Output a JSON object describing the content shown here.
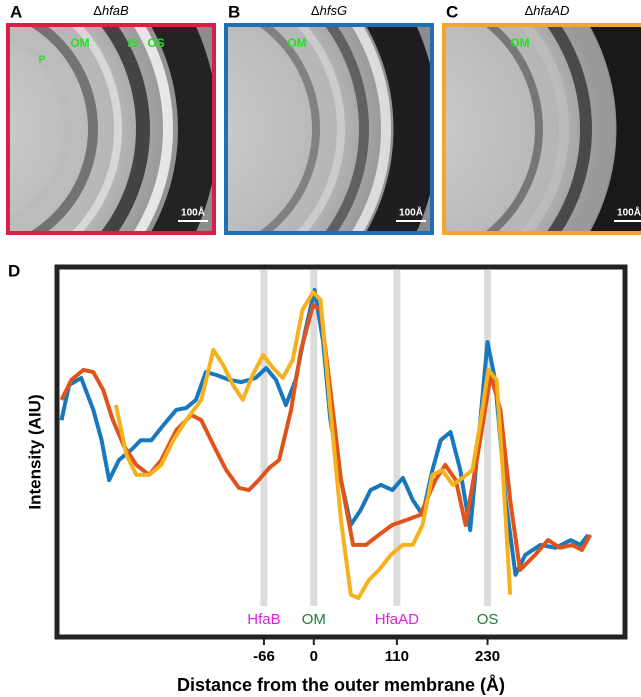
{
  "panels": [
    {
      "letter": "A",
      "prefix": "Δ",
      "gene": "hfaB",
      "color": "#d81f4a",
      "labels": [
        "P",
        "OM",
        "IS",
        "OS"
      ],
      "scale_bar": "100Å"
    },
    {
      "letter": "B",
      "prefix": "Δ",
      "gene": "hfsG",
      "color": "#1f6fb5",
      "labels": [
        "OM"
      ],
      "scale_bar": "100Å"
    },
    {
      "letter": "C",
      "prefix": "Δ",
      "gene": "hfaAD",
      "color": "#f5a623",
      "labels": [
        "OM"
      ],
      "scale_bar": "100Å"
    }
  ],
  "chart_data": {
    "type": "line",
    "panel_label": "D",
    "x_label": "Distance from the outer membrane (Å)",
    "y_label": "Intensity (AIU)",
    "xlim": [
      -340,
      412
    ],
    "ylim": [
      0,
      100
    ],
    "xticks": [
      -66,
      0,
      110,
      230
    ],
    "annotations": [
      {
        "x": -66,
        "label": "HfaB",
        "color": "#e020e0"
      },
      {
        "x": 0,
        "label": "OM",
        "color": "#1e7a3a"
      },
      {
        "x": 110,
        "label": "HfaAD",
        "color": "#e020e0"
      },
      {
        "x": 230,
        "label": "OS",
        "color": "#1e7a3a"
      }
    ],
    "series": [
      {
        "color": "#1878be",
        "x": [
          -334,
          -324,
          -308,
          -292,
          -281,
          -271,
          -258,
          -242,
          -229,
          -215,
          -199,
          -182,
          -169,
          -156,
          -143,
          -129,
          -112,
          -96,
          -77,
          -63,
          -50,
          -37,
          -24,
          -11,
          1,
          12,
          22,
          36,
          49,
          62,
          75,
          89,
          104,
          118,
          131,
          144,
          157,
          168,
          181,
          194,
          207,
          218,
          230,
          240,
          254,
          267,
          280,
          300,
          320,
          340,
          353,
          363
        ],
        "values": [
          58.6,
          68.1,
          70.0,
          61.4,
          53.2,
          42.4,
          47.8,
          50.5,
          53.2,
          53.2,
          57.3,
          61.4,
          61.9,
          64.1,
          71.6,
          70.8,
          69.5,
          68.9,
          70.0,
          72.7,
          69.5,
          62.7,
          69.5,
          83.0,
          93.8,
          80.3,
          58.6,
          42.4,
          30.3,
          34.3,
          39.7,
          41.1,
          39.7,
          43.0,
          37.0,
          33.0,
          45.1,
          53.2,
          55.4,
          45.1,
          28.9,
          53.2,
          79.7,
          69.5,
          37.0,
          16.8,
          22.2,
          24.9,
          24.1,
          26.2,
          24.9,
          27.6
        ]
      },
      {
        "color": "#e0541c",
        "x": [
          -334,
          -321,
          -305,
          -292,
          -279,
          -266,
          -252,
          -235,
          -218,
          -202,
          -182,
          -162,
          -149,
          -133,
          -116,
          -99,
          -86,
          -73,
          -59,
          -46,
          -30,
          -17,
          -1,
          9,
          22,
          36,
          52,
          69,
          86,
          104,
          122,
          141,
          161,
          174,
          188,
          201,
          218,
          234,
          247,
          260,
          273,
          293,
          310,
          326,
          342,
          355,
          366
        ],
        "values": [
          64.1,
          69.5,
          72.2,
          71.6,
          66.8,
          58.6,
          51.9,
          46.5,
          43.8,
          47.8,
          55.9,
          60.0,
          58.6,
          51.9,
          45.1,
          40.3,
          39.7,
          42.4,
          45.7,
          47.8,
          61.4,
          77.6,
          89.7,
          88.4,
          66.8,
          42.4,
          24.9,
          24.9,
          27.6,
          30.3,
          31.6,
          33.0,
          42.4,
          46.5,
          42.4,
          30.3,
          50.5,
          70.8,
          61.4,
          37.0,
          18.1,
          22.2,
          26.2,
          24.1,
          24.9,
          23.5,
          27.6
        ]
      },
      {
        "color": "#f5b21e",
        "x": [
          -262,
          -248,
          -235,
          -218,
          -202,
          -186,
          -169,
          -149,
          -133,
          -120,
          -107,
          -94,
          -81,
          -67,
          -54,
          -41,
          -28,
          -15,
          -1,
          9,
          22,
          36,
          49,
          59,
          73,
          86,
          102,
          118,
          131,
          144,
          157,
          170,
          184,
          197,
          210,
          221,
          231,
          242,
          251,
          260
        ],
        "values": [
          62.7,
          49.2,
          43.8,
          43.8,
          46.5,
          53.2,
          58.6,
          64.1,
          77.6,
          73.5,
          68.1,
          64.1,
          70.8,
          76.2,
          72.7,
          70.0,
          74.9,
          88.4,
          93.2,
          91.1,
          61.4,
          31.6,
          11.4,
          10.5,
          15.4,
          18.1,
          22.2,
          24.9,
          24.9,
          30.3,
          43.8,
          45.1,
          41.1,
          43.0,
          45.1,
          58.6,
          72.2,
          69.5,
          42.4,
          11.4
        ]
      }
    ]
  }
}
